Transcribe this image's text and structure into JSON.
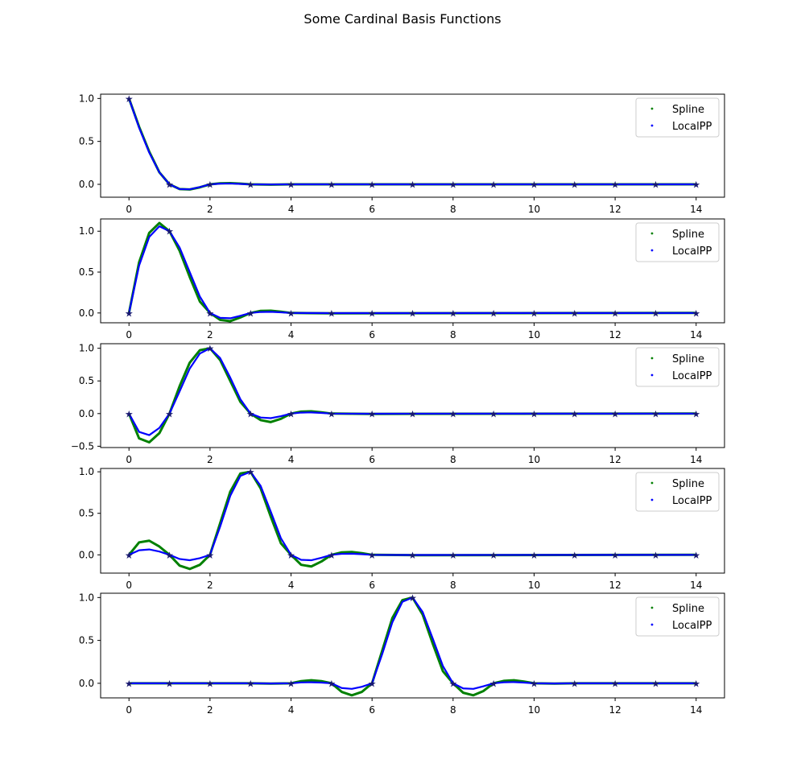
{
  "figure": {
    "title": "Some Cardinal Basis Functions"
  },
  "legend_labels": [
    "Spline",
    "LocalPP"
  ],
  "colors": {
    "spline": "#008000",
    "localpp": "#0000ff",
    "node": "#191970",
    "axes": "#000000"
  },
  "chart_data": [
    {
      "type": "line",
      "node_index": 0,
      "xlim": [
        -0.7,
        14.7
      ],
      "ylim": [
        -0.15,
        1.05
      ],
      "xticks": [
        0,
        2,
        4,
        6,
        8,
        10,
        12,
        14
      ],
      "yticks": [
        0.0,
        0.5,
        1.0
      ],
      "ytick_labels": [
        "0.0",
        "0.5",
        "1.0"
      ],
      "legend_position": "upper right",
      "grid": false,
      "series": [
        {
          "name": "Spline",
          "x": [
            0,
            0.25,
            0.5,
            0.75,
            1,
            1.25,
            1.5,
            1.75,
            2,
            2.25,
            2.5,
            2.75,
            3,
            3.5,
            4,
            14
          ],
          "y": [
            1.0,
            0.67,
            0.38,
            0.14,
            0.0,
            -0.055,
            -0.06,
            -0.035,
            0.0,
            0.012,
            0.014,
            0.008,
            0.0,
            -0.003,
            0.0,
            0.0
          ]
        },
        {
          "name": "LocalPP",
          "x": [
            0,
            0.25,
            0.5,
            0.75,
            1,
            1.25,
            1.5,
            1.75,
            2,
            2.25,
            2.5,
            2.75,
            3,
            3.5,
            4,
            14
          ],
          "y": [
            1.0,
            0.66,
            0.37,
            0.14,
            0.0,
            -0.055,
            -0.058,
            -0.032,
            0.0,
            0.008,
            0.01,
            0.005,
            0.0,
            -0.002,
            0.0,
            0.0
          ]
        }
      ],
      "nodes": {
        "x": [
          0,
          1,
          2,
          3,
          4,
          5,
          6,
          7,
          8,
          9,
          10,
          11,
          12,
          13,
          14
        ],
        "y": [
          1,
          0,
          0,
          0,
          0,
          0,
          0,
          0,
          0,
          0,
          0,
          0,
          0,
          0,
          0
        ]
      }
    },
    {
      "type": "line",
      "node_index": 1,
      "xlim": [
        -0.7,
        14.7
      ],
      "ylim": [
        -0.12,
        1.15
      ],
      "xticks": [
        0,
        2,
        4,
        6,
        8,
        10,
        12,
        14
      ],
      "yticks": [
        0.0,
        0.5,
        1.0
      ],
      "ytick_labels": [
        "0.0",
        "0.5",
        "1.0"
      ],
      "legend_position": "upper right",
      "grid": false,
      "series": [
        {
          "name": "Spline",
          "x": [
            0,
            0.25,
            0.5,
            0.75,
            1,
            1.25,
            1.5,
            1.75,
            2,
            2.25,
            2.5,
            2.75,
            3,
            3.25,
            3.5,
            3.75,
            4,
            5,
            14
          ],
          "y": [
            0.0,
            0.62,
            0.98,
            1.1,
            1.0,
            0.76,
            0.44,
            0.14,
            0.0,
            -0.085,
            -0.1,
            -0.055,
            0.0,
            0.025,
            0.028,
            0.015,
            0.0,
            -0.004,
            0.0
          ]
        },
        {
          "name": "LocalPP",
          "x": [
            0,
            0.25,
            0.5,
            0.75,
            1,
            1.25,
            1.5,
            1.75,
            2,
            2.25,
            2.5,
            2.75,
            3,
            3.25,
            3.5,
            3.75,
            4,
            5,
            14
          ],
          "y": [
            0.0,
            0.58,
            0.93,
            1.06,
            1.0,
            0.8,
            0.5,
            0.2,
            0.0,
            -0.06,
            -0.065,
            -0.035,
            0.0,
            0.012,
            0.014,
            0.008,
            0.0,
            -0.002,
            0.0
          ]
        }
      ],
      "nodes": {
        "x": [
          0,
          1,
          2,
          3,
          4,
          5,
          6,
          7,
          8,
          9,
          10,
          11,
          12,
          13,
          14
        ],
        "y": [
          0,
          1,
          0,
          0,
          0,
          0,
          0,
          0,
          0,
          0,
          0,
          0,
          0,
          0,
          0
        ]
      }
    },
    {
      "type": "line",
      "node_index": 2,
      "xlim": [
        -0.7,
        14.7
      ],
      "ylim": [
        -0.52,
        1.07
      ],
      "xticks": [
        0,
        2,
        4,
        6,
        8,
        10,
        12,
        14
      ],
      "yticks": [
        -0.5,
        0.0,
        0.5,
        1.0
      ],
      "ytick_labels": [
        "−0.5",
        "0.0",
        "0.5",
        "1.0"
      ],
      "legend_position": "upper right",
      "grid": false,
      "series": [
        {
          "name": "Spline",
          "x": [
            0,
            0.25,
            0.5,
            0.75,
            1,
            1.25,
            1.5,
            1.75,
            2,
            2.25,
            2.5,
            2.75,
            3,
            3.25,
            3.5,
            3.75,
            4,
            4.25,
            4.5,
            4.75,
            5,
            6,
            14
          ],
          "y": [
            0.0,
            -0.38,
            -0.44,
            -0.3,
            0.0,
            0.42,
            0.78,
            0.97,
            1.0,
            0.82,
            0.5,
            0.18,
            0.0,
            -0.1,
            -0.13,
            -0.08,
            0.0,
            0.03,
            0.035,
            0.02,
            0.0,
            -0.005,
            0.0
          ]
        },
        {
          "name": "LocalPP",
          "x": [
            0,
            0.25,
            0.5,
            0.75,
            1,
            1.25,
            1.5,
            1.75,
            2,
            2.25,
            2.5,
            2.75,
            3,
            3.25,
            3.5,
            3.75,
            4,
            4.25,
            4.5,
            4.75,
            5,
            6,
            14
          ],
          "y": [
            0.0,
            -0.28,
            -0.33,
            -0.22,
            0.0,
            0.34,
            0.69,
            0.92,
            1.0,
            0.85,
            0.55,
            0.22,
            0.0,
            -0.06,
            -0.07,
            -0.04,
            0.0,
            0.015,
            0.018,
            0.01,
            0.0,
            -0.002,
            0.0
          ]
        }
      ],
      "nodes": {
        "x": [
          0,
          1,
          2,
          3,
          4,
          5,
          6,
          7,
          8,
          9,
          10,
          11,
          12,
          13,
          14
        ],
        "y": [
          0,
          0,
          1,
          0,
          0,
          0,
          0,
          0,
          0,
          0,
          0,
          0,
          0,
          0,
          0
        ]
      }
    },
    {
      "type": "line",
      "node_index": 3,
      "xlim": [
        -0.7,
        14.7
      ],
      "ylim": [
        -0.22,
        1.04
      ],
      "xticks": [
        0,
        2,
        4,
        6,
        8,
        10,
        12,
        14
      ],
      "yticks": [
        0.0,
        0.5,
        1.0
      ],
      "ytick_labels": [
        "0.0",
        "0.5",
        "1.0"
      ],
      "legend_position": "upper right",
      "grid": false,
      "series": [
        {
          "name": "Spline",
          "x": [
            0,
            0.25,
            0.5,
            0.75,
            1,
            1.25,
            1.5,
            1.75,
            2,
            2.25,
            2.5,
            2.75,
            3,
            3.25,
            3.5,
            3.75,
            4,
            4.25,
            4.5,
            4.75,
            5,
            5.25,
            5.5,
            5.75,
            6,
            7,
            14
          ],
          "y": [
            0.0,
            0.15,
            0.17,
            0.1,
            0.0,
            -0.13,
            -0.17,
            -0.12,
            0.0,
            0.38,
            0.76,
            0.98,
            1.0,
            0.8,
            0.46,
            0.14,
            0.0,
            -0.12,
            -0.14,
            -0.08,
            0.0,
            0.03,
            0.035,
            0.02,
            0.0,
            -0.004,
            0.0
          ]
        },
        {
          "name": "LocalPP",
          "x": [
            0,
            0.25,
            0.5,
            0.75,
            1,
            1.25,
            1.5,
            1.75,
            2,
            2.25,
            2.5,
            2.75,
            3,
            3.25,
            3.5,
            3.75,
            4,
            4.25,
            4.5,
            4.75,
            5,
            5.25,
            5.5,
            5.75,
            6,
            7,
            14
          ],
          "y": [
            0.0,
            0.055,
            0.065,
            0.04,
            0.0,
            -0.05,
            -0.065,
            -0.04,
            0.0,
            0.34,
            0.71,
            0.95,
            1.0,
            0.83,
            0.52,
            0.2,
            0.0,
            -0.06,
            -0.065,
            -0.035,
            0.0,
            0.012,
            0.014,
            0.008,
            0.0,
            -0.002,
            0.0
          ]
        }
      ],
      "nodes": {
        "x": [
          0,
          1,
          2,
          3,
          4,
          5,
          6,
          7,
          8,
          9,
          10,
          11,
          12,
          13,
          14
        ],
        "y": [
          0,
          0,
          0,
          1,
          0,
          0,
          0,
          0,
          0,
          0,
          0,
          0,
          0,
          0,
          0
        ]
      }
    },
    {
      "type": "line",
      "node_index": 7,
      "xlim": [
        -0.7,
        14.7
      ],
      "ylim": [
        -0.17,
        1.05
      ],
      "xticks": [
        0,
        2,
        4,
        6,
        8,
        10,
        12,
        14
      ],
      "yticks": [
        0.0,
        0.5,
        1.0
      ],
      "ytick_labels": [
        "0.0",
        "0.5",
        "1.0"
      ],
      "legend_position": "upper right",
      "grid": false,
      "series": [
        {
          "name": "Spline",
          "x": [
            0,
            3,
            3.5,
            4,
            4.25,
            4.5,
            4.75,
            5,
            5.25,
            5.5,
            5.75,
            6,
            6.25,
            6.5,
            6.75,
            7,
            7.25,
            7.5,
            7.75,
            8,
            8.25,
            8.5,
            8.75,
            9,
            9.25,
            9.5,
            9.75,
            10,
            10.5,
            11,
            14
          ],
          "y": [
            0.0,
            0.0,
            -0.003,
            0.0,
            0.025,
            0.035,
            0.025,
            0.0,
            -0.1,
            -0.14,
            -0.1,
            0.0,
            0.38,
            0.76,
            0.97,
            1.0,
            0.8,
            0.46,
            0.14,
            0.0,
            -0.11,
            -0.14,
            -0.09,
            0.0,
            0.028,
            0.035,
            0.02,
            0.0,
            -0.004,
            0.0,
            0.0
          ]
        },
        {
          "name": "LocalPP",
          "x": [
            0,
            3,
            3.5,
            4,
            4.25,
            4.5,
            4.75,
            5,
            5.25,
            5.5,
            5.75,
            6,
            6.25,
            6.5,
            6.75,
            7,
            7.25,
            7.5,
            7.75,
            8,
            8.25,
            8.5,
            8.75,
            9,
            9.25,
            9.5,
            9.75,
            10,
            10.5,
            11,
            14
          ],
          "y": [
            0.0,
            0.0,
            -0.002,
            0.0,
            0.01,
            0.012,
            0.008,
            0.0,
            -0.055,
            -0.065,
            -0.04,
            0.0,
            0.34,
            0.71,
            0.95,
            1.0,
            0.83,
            0.52,
            0.2,
            0.0,
            -0.06,
            -0.065,
            -0.035,
            0.0,
            0.012,
            0.014,
            0.008,
            0.0,
            -0.002,
            0.0,
            0.0
          ]
        }
      ],
      "nodes": {
        "x": [
          0,
          1,
          2,
          3,
          4,
          5,
          6,
          7,
          8,
          9,
          10,
          11,
          12,
          13,
          14
        ],
        "y": [
          0,
          0,
          0,
          0,
          0,
          0,
          0,
          1,
          0,
          0,
          0,
          0,
          0,
          0,
          0
        ]
      }
    }
  ]
}
